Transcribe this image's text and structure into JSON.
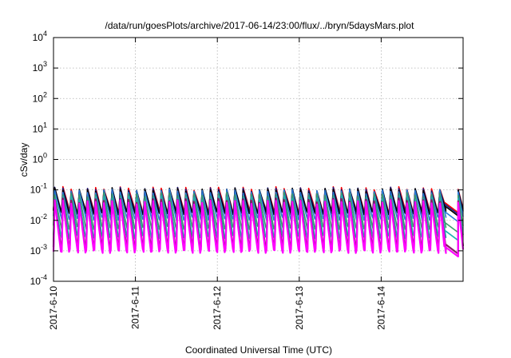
{
  "chart_data": {
    "type": "line",
    "title": "/data/run/goesPlots/archive/2017-06-14/23:00/flux/../bryn/5daysMars.plot",
    "xlabel": "Coordinated Universal Time (UTC)",
    "ylabel": "cSv/day",
    "y_scale": "log",
    "ylim": [
      0.0001,
      10000
    ],
    "xlim": [
      "2017-06-10",
      "2017-06-15"
    ],
    "grid": true,
    "legend": "none",
    "x_ticks": [
      "2017-6-10",
      "2017-6-11",
      "2017-6-12",
      "2017-6-13",
      "2017-6-14"
    ],
    "y_ticks": [
      {
        "base": "10",
        "exp": "-4",
        "value": 0.0001
      },
      {
        "base": "10",
        "exp": "-3",
        "value": 0.001
      },
      {
        "base": "10",
        "exp": "-2",
        "value": 0.01
      },
      {
        "base": "10",
        "exp": "-1",
        "value": 0.1
      },
      {
        "base": "10",
        "exp": "0",
        "value": 1
      },
      {
        "base": "10",
        "exp": "1",
        "value": 10
      },
      {
        "base": "10",
        "exp": "2",
        "value": 100
      },
      {
        "base": "10",
        "exp": "3",
        "value": 1000
      },
      {
        "base": "10",
        "exp": "4",
        "value": 10000
      }
    ],
    "cycles_per_day": 10,
    "series": [
      {
        "color": "#ff0000",
        "peak": 0.11,
        "trough": 0.022,
        "end_low": 0.018
      },
      {
        "color": "#1a1a80",
        "peak": 0.105,
        "trough": 0.02,
        "end_low": 0.016
      },
      {
        "color": "#000000",
        "peak": 0.1,
        "trough": 0.018,
        "end_low": 0.014
      },
      {
        "color": "#2a7ad8",
        "peak": 0.09,
        "trough": 0.012,
        "end_low": 0.009
      },
      {
        "color": "#3a9a6a",
        "peak": 0.07,
        "trough": 0.006,
        "end_low": 0.004
      },
      {
        "color": "#20b0b0",
        "peak": 0.055,
        "trough": 0.003,
        "end_low": 0.0022
      },
      {
        "color": "#8a1a6a",
        "peak": 0.045,
        "trough": 0.0013,
        "end_low": 0.0008
      },
      {
        "color": "#ff00ff",
        "peak": 0.04,
        "trough": 0.001,
        "end_low": 0.00065
      }
    ]
  }
}
